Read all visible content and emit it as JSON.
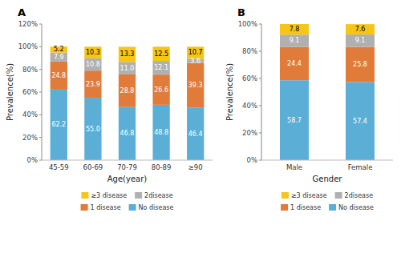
{
  "chart_data": [
    {
      "type": "bar",
      "stacked": true,
      "title": "A",
      "categories": [
        "45-59",
        "60-69",
        "70-79",
        "80-89",
        "≥90"
      ],
      "series": [
        {
          "name": "No disease",
          "color": "#5bafd6",
          "values": [
            62.2,
            55.0,
            46.8,
            48.8,
            46.4
          ],
          "value_labels": [
            "62.2",
            "55.0",
            "46.8",
            "48.8",
            "46.4"
          ]
        },
        {
          "name": "1 disease",
          "color": "#e07b39",
          "values": [
            24.8,
            23.9,
            28.8,
            26.6,
            39.3
          ]
        },
        {
          "name": "2disease",
          "color": "#b0b0b0",
          "values": [
            7.9,
            10.8,
            11.0,
            12.1,
            3.6
          ],
          "value_labels": [
            "7.9",
            "10.8",
            "11.0",
            "12.1",
            "3.6"
          ]
        },
        {
          "name": "≥3 disease",
          "color": "#f5c518",
          "values": [
            5.2,
            10.3,
            13.3,
            12.5,
            10.7
          ]
        }
      ],
      "x_label": "Age(year)",
      "y_label": "Prevalence(%)",
      "ylim": [
        0,
        120
      ],
      "yticks": [
        {
          "value": 0,
          "label": "0%"
        },
        {
          "value": 20,
          "label": "20%"
        },
        {
          "value": 40,
          "label": "40%"
        },
        {
          "value": 60,
          "label": "60%"
        },
        {
          "value": 80,
          "label": "80%"
        },
        {
          "value": 100,
          "label": "100%"
        },
        {
          "value": 120,
          "label": "120%"
        }
      ],
      "grid": false,
      "legend": "bottom",
      "data_labels": true
    },
    {
      "type": "bar",
      "stacked": true,
      "title": "B",
      "categories": [
        "Male",
        "Female"
      ],
      "series": [
        {
          "name": "No disease",
          "color": "#5bafd6",
          "values": [
            58.7,
            57.4
          ]
        },
        {
          "name": "1 disease",
          "color": "#e07b39",
          "values": [
            24.4,
            25.8
          ]
        },
        {
          "name": "2disease",
          "color": "#b0b0b0",
          "values": [
            9.1,
            9.1
          ]
        },
        {
          "name": "≥3 disease",
          "color": "#f5c518",
          "values": [
            7.8,
            7.6
          ]
        }
      ],
      "x_label": "Gender",
      "y_label": "Prevalence(%)",
      "ylim": [
        0,
        100
      ],
      "yticks": [
        {
          "value": 0,
          "label": "0%"
        },
        {
          "value": 20,
          "label": "20%"
        },
        {
          "value": 40,
          "label": "40%"
        },
        {
          "value": 60,
          "label": "60%"
        },
        {
          "value": 80,
          "label": "80%"
        },
        {
          "value": 100,
          "label": "100%"
        }
      ],
      "grid": false,
      "legend": "bottom",
      "data_labels": true
    }
  ]
}
